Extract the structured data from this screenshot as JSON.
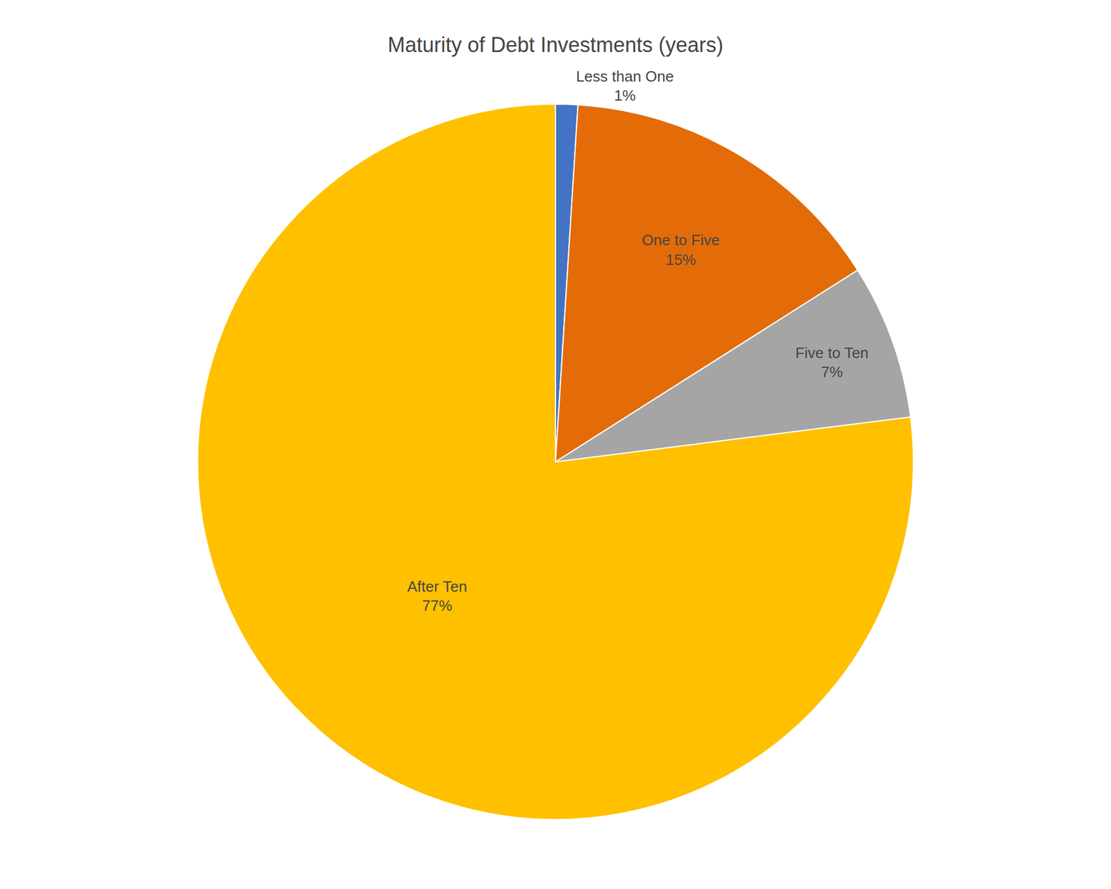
{
  "chart_data": {
    "type": "pie",
    "title": "Maturity of Debt Investments (years)",
    "categories": [
      "Less than One",
      "One to Five",
      "Five to Ten",
      "After Ten"
    ],
    "values": [
      1,
      15,
      7,
      77
    ],
    "value_labels": [
      "1%",
      "15%",
      "7%",
      "77%"
    ],
    "colors": [
      "#4472C4",
      "#E36C09",
      "#A5A5A5",
      "#FFC000"
    ],
    "data_labels": true
  }
}
